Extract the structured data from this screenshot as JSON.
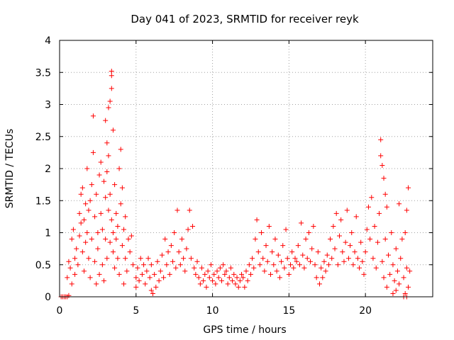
{
  "chart_data": {
    "type": "scatter",
    "title": "Day 041 of 2023, SRMTID for receiver reyk",
    "xlabel": "GPS time / hours",
    "ylabel": "SRMTID / TECUs",
    "xlim": [
      0,
      24.4
    ],
    "ylim": [
      0,
      4
    ],
    "xticks": [
      0,
      5,
      10,
      15,
      20
    ],
    "xtick_labels": [
      "0",
      "5",
      "10",
      "15",
      "20"
    ],
    "yticks": [
      0,
      0.5,
      1,
      1.5,
      2,
      2.5,
      3,
      3.5,
      4
    ],
    "ytick_labels": [
      "0",
      "0.5",
      "1",
      "1.5",
      "2",
      "2.5",
      "3",
      "3.5",
      "4"
    ],
    "grid": true,
    "marker": "+",
    "color": "#ff0000",
    "series": [
      {
        "name": "SRMTID",
        "points": [
          [
            0.1,
            0.0
          ],
          [
            0.2,
            0.0
          ],
          [
            0.3,
            0.0
          ],
          [
            0.4,
            0.0
          ],
          [
            0.5,
            0.0
          ],
          [
            0.6,
            0.02
          ],
          [
            0.5,
            0.3
          ],
          [
            0.6,
            0.55
          ],
          [
            0.7,
            0.45
          ],
          [
            0.8,
            0.2
          ],
          [
            0.8,
            0.9
          ],
          [
            0.9,
            1.05
          ],
          [
            1.0,
            0.6
          ],
          [
            1.0,
            0.35
          ],
          [
            1.1,
            0.75
          ],
          [
            1.2,
            0.5
          ],
          [
            1.3,
            1.3
          ],
          [
            1.3,
            0.95
          ],
          [
            1.4,
            1.6
          ],
          [
            1.4,
            1.15
          ],
          [
            1.5,
            1.7
          ],
          [
            1.5,
            0.7
          ],
          [
            1.6,
            1.2
          ],
          [
            1.6,
            0.4
          ],
          [
            1.7,
            1.45
          ],
          [
            1.7,
            0.85
          ],
          [
            1.8,
            2.0
          ],
          [
            1.8,
            1.0
          ],
          [
            1.9,
            0.6
          ],
          [
            1.9,
            1.35
          ],
          [
            2.0,
            1.5
          ],
          [
            2.0,
            0.3
          ],
          [
            2.1,
            0.9
          ],
          [
            2.1,
            1.75
          ],
          [
            2.2,
            2.25
          ],
          [
            2.2,
            2.82
          ],
          [
            2.3,
            1.25
          ],
          [
            2.3,
            0.55
          ],
          [
            2.4,
            0.2
          ],
          [
            2.4,
            1.6
          ],
          [
            2.5,
            1.0
          ],
          [
            2.5,
            0.75
          ],
          [
            2.6,
            1.9
          ],
          [
            2.6,
            0.35
          ],
          [
            2.7,
            1.3
          ],
          [
            2.7,
            2.1
          ],
          [
            2.8,
            0.5
          ],
          [
            2.8,
            1.05
          ],
          [
            2.9,
            1.8
          ],
          [
            2.9,
            0.25
          ],
          [
            3.0,
            2.75
          ],
          [
            3.0,
            1.55
          ],
          [
            3.0,
            0.9
          ],
          [
            3.1,
            2.4
          ],
          [
            3.1,
            1.95
          ],
          [
            3.1,
            0.6
          ],
          [
            3.2,
            2.95
          ],
          [
            3.2,
            2.2
          ],
          [
            3.2,
            1.35
          ],
          [
            3.3,
            3.05
          ],
          [
            3.3,
            1.6
          ],
          [
            3.3,
            0.85
          ],
          [
            3.4,
            3.52
          ],
          [
            3.4,
            3.45
          ],
          [
            3.4,
            3.25
          ],
          [
            3.4,
            1.2
          ],
          [
            3.5,
            2.6
          ],
          [
            3.5,
            1.0
          ],
          [
            3.5,
            0.7
          ],
          [
            3.6,
            1.75
          ],
          [
            3.6,
            0.45
          ],
          [
            3.7,
            1.3
          ],
          [
            3.7,
            0.9
          ],
          [
            3.8,
            1.1
          ],
          [
            3.8,
            0.6
          ],
          [
            3.9,
            2.0
          ],
          [
            3.9,
            0.35
          ],
          [
            4.0,
            2.3
          ],
          [
            4.0,
            1.45
          ],
          [
            4.1,
            1.7
          ],
          [
            4.1,
            0.8
          ],
          [
            4.2,
            0.2
          ],
          [
            4.2,
            1.05
          ],
          [
            4.3,
            0.6
          ],
          [
            4.3,
            1.25
          ],
          [
            4.4,
            0.4
          ],
          [
            4.5,
            0.9
          ],
          [
            4.6,
            0.7
          ],
          [
            4.7,
            0.95
          ],
          [
            4.8,
            0.5
          ],
          [
            5.0,
            0.3
          ],
          [
            5.0,
            0.15
          ],
          [
            5.1,
            0.45
          ],
          [
            5.2,
            0.25
          ],
          [
            5.3,
            0.6
          ],
          [
            5.4,
            0.35
          ],
          [
            5.5,
            0.5
          ],
          [
            5.6,
            0.2
          ],
          [
            5.7,
            0.4
          ],
          [
            5.8,
            0.6
          ],
          [
            5.9,
            0.3
          ],
          [
            6.0,
            0.1
          ],
          [
            6.0,
            0.5
          ],
          [
            6.1,
            0.05
          ],
          [
            6.2,
            0.35
          ],
          [
            6.3,
            0.15
          ],
          [
            6.4,
            0.55
          ],
          [
            6.5,
            0.25
          ],
          [
            6.6,
            0.4
          ],
          [
            6.7,
            0.65
          ],
          [
            6.8,
            0.3
          ],
          [
            6.9,
            0.9
          ],
          [
            7.0,
            0.5
          ],
          [
            7.1,
            0.7
          ],
          [
            7.2,
            0.35
          ],
          [
            7.3,
            0.8
          ],
          [
            7.4,
            0.55
          ],
          [
            7.5,
            1.0
          ],
          [
            7.6,
            0.45
          ],
          [
            7.7,
            1.35
          ],
          [
            7.8,
            0.7
          ],
          [
            7.9,
            0.5
          ],
          [
            8.0,
            0.9
          ],
          [
            8.1,
            0.6
          ],
          [
            8.2,
            0.4
          ],
          [
            8.3,
            0.75
          ],
          [
            8.4,
            1.05
          ],
          [
            8.5,
            1.35
          ],
          [
            8.6,
            0.6
          ],
          [
            8.7,
            1.1
          ],
          [
            8.8,
            0.45
          ],
          [
            8.9,
            0.35
          ],
          [
            9.0,
            0.55
          ],
          [
            9.1,
            0.3
          ],
          [
            9.2,
            0.2
          ],
          [
            9.3,
            0.45
          ],
          [
            9.4,
            0.25
          ],
          [
            9.5,
            0.35
          ],
          [
            9.6,
            0.15
          ],
          [
            9.7,
            0.4
          ],
          [
            9.8,
            0.3
          ],
          [
            9.9,
            0.5
          ],
          [
            10.0,
            0.25
          ],
          [
            10.1,
            0.35
          ],
          [
            10.2,
            0.2
          ],
          [
            10.3,
            0.4
          ],
          [
            10.4,
            0.3
          ],
          [
            10.5,
            0.45
          ],
          [
            10.6,
            0.25
          ],
          [
            10.7,
            0.5
          ],
          [
            10.8,
            0.35
          ],
          [
            10.9,
            0.4
          ],
          [
            11.0,
            0.2
          ],
          [
            11.1,
            0.3
          ],
          [
            11.2,
            0.45
          ],
          [
            11.3,
            0.25
          ],
          [
            11.4,
            0.35
          ],
          [
            11.5,
            0.2
          ],
          [
            11.6,
            0.3
          ],
          [
            11.7,
            0.15
          ],
          [
            11.8,
            0.25
          ],
          [
            11.9,
            0.35
          ],
          [
            12.0,
            0.3
          ],
          [
            12.1,
            0.15
          ],
          [
            12.2,
            0.4
          ],
          [
            12.3,
            0.25
          ],
          [
            12.4,
            0.5
          ],
          [
            12.5,
            0.35
          ],
          [
            12.6,
            0.6
          ],
          [
            12.7,
            0.45
          ],
          [
            12.8,
            0.9
          ],
          [
            12.9,
            1.2
          ],
          [
            13.0,
            0.7
          ],
          [
            13.1,
            0.5
          ],
          [
            13.2,
            1.0
          ],
          [
            13.3,
            0.6
          ],
          [
            13.4,
            0.4
          ],
          [
            13.5,
            0.8
          ],
          [
            13.6,
            0.55
          ],
          [
            13.7,
            1.1
          ],
          [
            13.8,
            0.35
          ],
          [
            13.9,
            0.7
          ],
          [
            14.0,
            0.5
          ],
          [
            14.1,
            0.9
          ],
          [
            14.2,
            0.4
          ],
          [
            14.3,
            0.65
          ],
          [
            14.4,
            0.3
          ],
          [
            14.5,
            0.55
          ],
          [
            14.6,
            0.8
          ],
          [
            14.7,
            0.45
          ],
          [
            14.8,
            1.05
          ],
          [
            14.9,
            0.6
          ],
          [
            15.0,
            0.35
          ],
          [
            15.1,
            0.5
          ],
          [
            15.2,
            0.7
          ],
          [
            15.3,
            0.45
          ],
          [
            15.4,
            0.6
          ],
          [
            15.5,
            0.55
          ],
          [
            15.6,
            0.8
          ],
          [
            15.7,
            0.5
          ],
          [
            15.8,
            1.15
          ],
          [
            15.9,
            0.65
          ],
          [
            16.0,
            0.45
          ],
          [
            16.1,
            0.9
          ],
          [
            16.2,
            0.6
          ],
          [
            16.3,
            1.0
          ],
          [
            16.4,
            0.55
          ],
          [
            16.5,
            0.75
          ],
          [
            16.6,
            1.1
          ],
          [
            16.7,
            0.5
          ],
          [
            16.8,
            0.3
          ],
          [
            16.9,
            0.7
          ],
          [
            17.0,
            0.2
          ],
          [
            17.1,
            0.45
          ],
          [
            17.2,
            0.3
          ],
          [
            17.3,
            0.55
          ],
          [
            17.4,
            0.4
          ],
          [
            17.5,
            0.65
          ],
          [
            17.6,
            0.5
          ],
          [
            17.7,
            0.9
          ],
          [
            17.8,
            0.6
          ],
          [
            17.9,
            1.1
          ],
          [
            18.0,
            0.75
          ],
          [
            18.1,
            1.3
          ],
          [
            18.2,
            0.5
          ],
          [
            18.3,
            0.95
          ],
          [
            18.4,
            1.2
          ],
          [
            18.5,
            0.7
          ],
          [
            18.6,
            0.55
          ],
          [
            18.7,
            0.85
          ],
          [
            18.8,
            1.35
          ],
          [
            18.9,
            0.6
          ],
          [
            19.0,
            0.8
          ],
          [
            19.1,
            1.0
          ],
          [
            19.2,
            0.5
          ],
          [
            19.3,
            0.7
          ],
          [
            19.4,
            1.25
          ],
          [
            19.5,
            0.6
          ],
          [
            19.6,
            0.45
          ],
          [
            19.7,
            0.85
          ],
          [
            19.8,
            0.55
          ],
          [
            19.9,
            0.35
          ],
          [
            20.0,
            0.7
          ],
          [
            20.1,
            1.05
          ],
          [
            20.2,
            1.4
          ],
          [
            20.3,
            0.9
          ],
          [
            20.4,
            1.55
          ],
          [
            20.5,
            0.6
          ],
          [
            20.6,
            1.1
          ],
          [
            20.7,
            0.45
          ],
          [
            20.8,
            0.85
          ],
          [
            20.9,
            1.3
          ],
          [
            21.0,
            2.45
          ],
          [
            21.0,
            2.2
          ],
          [
            21.1,
            2.05
          ],
          [
            21.1,
            0.55
          ],
          [
            21.2,
            1.85
          ],
          [
            21.2,
            0.3
          ],
          [
            21.3,
            1.6
          ],
          [
            21.3,
            0.9
          ],
          [
            21.4,
            1.4
          ],
          [
            21.4,
            0.15
          ],
          [
            21.5,
            0.65
          ],
          [
            21.6,
            0.35
          ],
          [
            21.7,
            1.0
          ],
          [
            21.8,
            0.05
          ],
          [
            21.8,
            0.5
          ],
          [
            21.9,
            0.25
          ],
          [
            22.0,
            0.75
          ],
          [
            22.0,
            0.1
          ],
          [
            22.1,
            0.4
          ],
          [
            22.2,
            1.45
          ],
          [
            22.2,
            0.2
          ],
          [
            22.3,
            0.6
          ],
          [
            22.4,
            0.9
          ],
          [
            22.5,
            0.3
          ],
          [
            22.6,
            0.05
          ],
          [
            22.6,
            1.0
          ],
          [
            22.7,
            1.35
          ],
          [
            22.7,
            0.45
          ],
          [
            22.8,
            0.15
          ],
          [
            22.8,
            1.7
          ],
          [
            22.9,
            0.4
          ],
          [
            22.5,
            0.0
          ],
          [
            22.7,
            0.0
          ]
        ]
      }
    ]
  }
}
